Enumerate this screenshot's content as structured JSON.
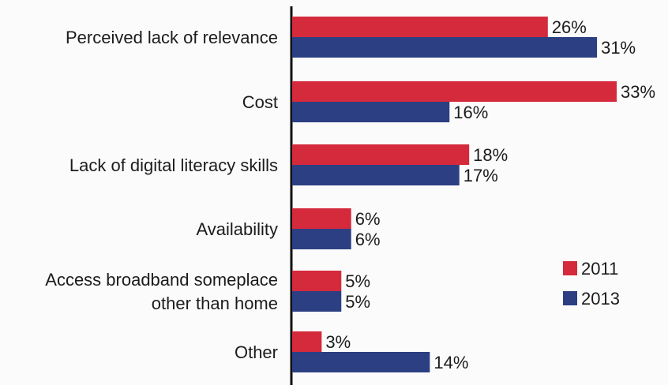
{
  "chart_data": {
    "type": "bar",
    "orientation": "horizontal",
    "categories": [
      "Perceived lack of relevance",
      "Cost",
      "Lack of digital literacy skills",
      "Availability",
      "Access broadband someplace other than home",
      "Other"
    ],
    "category_lines": [
      [
        "Perceived lack of relevance"
      ],
      [
        "Cost"
      ],
      [
        "Lack of digital literacy skills"
      ],
      [
        "Availability"
      ],
      [
        "Access broadband someplace",
        "other than home"
      ],
      [
        "Other"
      ]
    ],
    "series": [
      {
        "name": "2011",
        "color": "#d42a3c",
        "values": [
          26,
          33,
          18,
          6,
          5,
          3
        ],
        "labels": [
          "26%",
          "33%",
          "18%",
          "6%",
          "5%",
          "3%"
        ]
      },
      {
        "name": "2013",
        "color": "#2c3f82",
        "values": [
          31,
          16,
          17,
          6,
          5,
          14
        ],
        "labels": [
          "31%",
          "16%",
          "17%",
          "6%",
          "5%",
          "14%"
        ]
      }
    ],
    "xlim": [
      0,
      33
    ],
    "grid": false,
    "legend_position": "bottom-right"
  }
}
